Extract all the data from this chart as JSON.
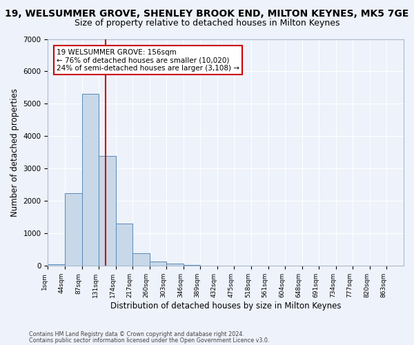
{
  "title_line1": "19, WELSUMMER GROVE, SHENLEY BROOK END, MILTON KEYNES, MK5 7GE",
  "title_line2": "Size of property relative to detached houses in Milton Keynes",
  "xlabel": "Distribution of detached houses by size in Milton Keynes",
  "ylabel": "Number of detached properties",
  "footer_line1": "Contains HM Land Registry data © Crown copyright and database right 2024.",
  "footer_line2": "Contains public sector information licensed under the Open Government Licence v3.0.",
  "bin_labels": [
    "1sqm",
    "44sqm",
    "87sqm",
    "131sqm",
    "174sqm",
    "217sqm",
    "260sqm",
    "303sqm",
    "346sqm",
    "389sqm",
    "432sqm",
    "475sqm",
    "518sqm",
    "561sqm",
    "604sqm",
    "648sqm",
    "691sqm",
    "734sqm",
    "777sqm",
    "820sqm",
    "863sqm"
  ],
  "bar_values": [
    50,
    2250,
    5300,
    3400,
    1300,
    400,
    130,
    80,
    20,
    5,
    2,
    0,
    0,
    0,
    0,
    0,
    0,
    0,
    0,
    0,
    0
  ],
  "bar_color": "#c8d8e8",
  "bar_edge_color": "#5588bb",
  "vline_x": 3.4,
  "vline_color": "#cc0000",
  "annotation_text": "19 WELSUMMER GROVE: 156sqm\n← 76% of detached houses are smaller (10,020)\n24% of semi-detached houses are larger (3,108) →",
  "annotation_box_color": "white",
  "annotation_box_edge_color": "#cc0000",
  "ylim": [
    0,
    7000
  ],
  "yticks": [
    0,
    1000,
    2000,
    3000,
    4000,
    5000,
    6000,
    7000
  ],
  "background_color": "#eef2fa",
  "grid_color": "#ffffff",
  "title_fontsize": 10,
  "subtitle_fontsize": 9,
  "axis_fontsize": 8.5
}
